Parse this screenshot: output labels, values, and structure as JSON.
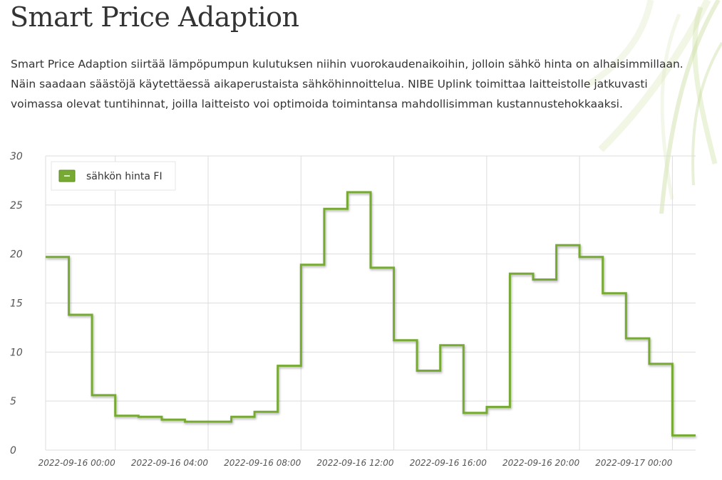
{
  "header": {
    "title": "Smart Price Adaption"
  },
  "intro": {
    "text": "Smart Price Adaption siirtää lämpöpumpun kulutuksen niihin vuorokaudenaikoihin, jolloin sähkö hinta on alhaisimmillaan. Näin saadaan säästöjä käytettäessä aikaperustaista sähköhinnoittelua. NIBE Uplink toimittaa laitteistolle jatkuvasti voimassa olevat tuntihinnat, joilla laitteisto voi optimoida toimintansa mahdollisimman kustannustehokkaaksi."
  },
  "colors": {
    "series": "#77aa33",
    "grid": "#dddddd",
    "text": "#333333"
  },
  "chart_data": {
    "type": "line",
    "step": true,
    "title": "",
    "xlabel": "",
    "ylabel": "",
    "ylim": [
      0,
      30
    ],
    "yticks": [
      "0",
      "5",
      "10",
      "15",
      "20",
      "25",
      "30"
    ],
    "xlim": [
      "2022-09-15 21:00",
      "2022-09-17 01:00"
    ],
    "xticks": [
      "2022-09-16 00:00",
      "2022-09-16 04:00",
      "2022-09-16 08:00",
      "2022-09-16 12:00",
      "2022-09-16 16:00",
      "2022-09-16 20:00",
      "2022-09-17 00:00"
    ],
    "grid": true,
    "legend": {
      "position": "top-left"
    },
    "series": [
      {
        "name": "sähkön hinta FI",
        "color": "#77aa33",
        "x": [
          "2022-09-15 21:00",
          "2022-09-15 22:00",
          "2022-09-15 23:00",
          "2022-09-16 00:00",
          "2022-09-16 01:00",
          "2022-09-16 02:00",
          "2022-09-16 03:00",
          "2022-09-16 04:00",
          "2022-09-16 05:00",
          "2022-09-16 06:00",
          "2022-09-16 07:00",
          "2022-09-16 08:00",
          "2022-09-16 09:00",
          "2022-09-16 10:00",
          "2022-09-16 11:00",
          "2022-09-16 12:00",
          "2022-09-16 13:00",
          "2022-09-16 14:00",
          "2022-09-16 15:00",
          "2022-09-16 16:00",
          "2022-09-16 17:00",
          "2022-09-16 18:00",
          "2022-09-16 19:00",
          "2022-09-16 20:00",
          "2022-09-16 21:00",
          "2022-09-16 22:00",
          "2022-09-16 23:00",
          "2022-09-17 00:00"
        ],
        "values": [
          19.7,
          13.8,
          5.6,
          3.5,
          3.4,
          3.1,
          2.9,
          2.9,
          3.4,
          3.9,
          8.6,
          18.9,
          24.6,
          26.3,
          18.6,
          11.2,
          8.1,
          10.7,
          3.8,
          4.4,
          18.0,
          17.4,
          20.9,
          19.7,
          16.0,
          11.4,
          8.8,
          1.5
        ]
      }
    ]
  }
}
